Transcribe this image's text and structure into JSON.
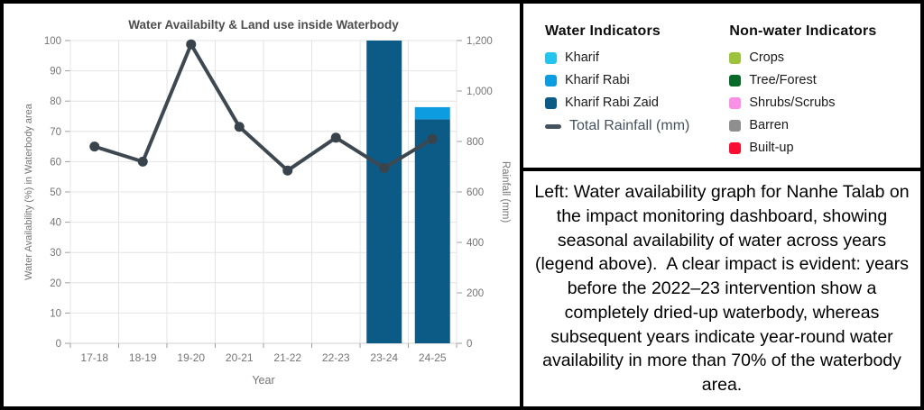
{
  "chart": {
    "title": "Water Availabilty & Land use inside Waterbody",
    "xlabel": "Year",
    "ylabel_left": "Water Availability (%) in Waterbody area",
    "ylabel_right": "Rainfall (mm)"
  },
  "chart_data": {
    "type": "bar",
    "subtype": "stacked-columns-with-line-overlay",
    "categories": [
      "17-18",
      "18-19",
      "19-20",
      "20-21",
      "21-22",
      "22-23",
      "23-24",
      "24-25"
    ],
    "title": "Water Availabilty & Land use inside Waterbody",
    "xlabel": "Year",
    "ylabel_left": "Water Availability (%) in Waterbody area",
    "ylabel_right": "Rainfall (mm)",
    "ylim_left": [
      0,
      100
    ],
    "ylim_right": [
      0,
      1200
    ],
    "yticks_left": [
      0,
      10,
      20,
      30,
      40,
      50,
      60,
      70,
      80,
      90,
      100
    ],
    "yticks_right": [
      0,
      200,
      400,
      600,
      800,
      1000,
      1200
    ],
    "grid": "on",
    "series": [
      {
        "name": "Kharif",
        "type": "bar",
        "axis": "left",
        "color": "#25C4EC",
        "values": [
          0,
          0,
          0,
          0,
          0,
          0,
          0,
          0
        ]
      },
      {
        "name": "Kharif Rabi",
        "type": "bar",
        "axis": "left",
        "color": "#0C9CDF",
        "values": [
          0,
          0,
          0,
          0,
          0,
          0,
          0,
          4
        ]
      },
      {
        "name": "Kharif Rabi Zaid",
        "type": "bar",
        "axis": "left",
        "color": "#0C5A86",
        "values": [
          0,
          0,
          0,
          0,
          0,
          0,
          100,
          74
        ]
      },
      {
        "name": "Total Rainfall (mm)",
        "type": "line",
        "axis": "right",
        "color": "#3E4850",
        "values": [
          780,
          720,
          1185,
          858,
          685,
          815,
          695,
          810
        ]
      }
    ],
    "style": {
      "grid_color": "#e4e4e4",
      "baseline_color": "#d2d2d2",
      "tick_color": "#9e9e9e",
      "tick_label_color": "#757575",
      "title_color": "#4d4d4d",
      "line_color": "#3E4850",
      "dot_color": "#39434B"
    }
  },
  "legend": {
    "water": {
      "header": "Water Indicators",
      "items": [
        {
          "label": "Kharif",
          "color": "#25C4EC",
          "marker": "square"
        },
        {
          "label": "Kharif Rabi",
          "color": "#0C9CDF",
          "marker": "square"
        },
        {
          "label": "Kharif Rabi Zaid",
          "color": "#0C5A86",
          "marker": "square"
        },
        {
          "label": "Total Rainfall (mm)",
          "color": "#44525D",
          "marker": "line"
        }
      ]
    },
    "nonwater": {
      "header": "Non-water Indicators",
      "items": [
        {
          "label": "Crops",
          "color": "#9DC23B",
          "marker": "square"
        },
        {
          "label": "Tree/Forest",
          "color": "#0A6A2A",
          "marker": "square"
        },
        {
          "label": "Shrubs/Scrubs",
          "color": "#FA90E6",
          "marker": "square"
        },
        {
          "label": "Barren",
          "color": "#8F8F8F",
          "marker": "square"
        },
        {
          "label": "Built-up",
          "color": "#FA0D33",
          "marker": "square"
        }
      ]
    }
  },
  "caption": {
    "text": "Left: Water availability graph for Nanhe Talab on the impact monitoring dashboard, showing seasonal availability of water across years (legend above).  A clear impact is evident: years before the 2022–23 intervention show a completely dried-up waterbody, whereas subsequent years indicate year-round water availability in more than 70% of the waterbody area."
  }
}
